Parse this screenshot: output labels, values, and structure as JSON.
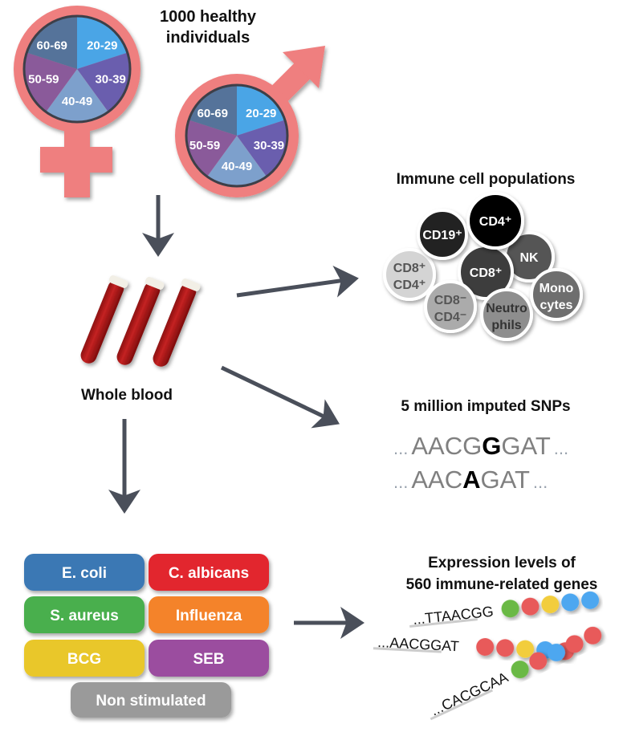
{
  "title": {
    "line1": "1000 healthy",
    "line2": "individuals"
  },
  "colors": {
    "symbol": "#ef7f7f",
    "arrow": "#4a4f5a",
    "blood": "#b51d1d"
  },
  "age_groups": [
    {
      "label": "20-29",
      "color": "#4aa5e6"
    },
    {
      "label": "30-39",
      "color": "#6a5eae"
    },
    {
      "label": "40-49",
      "color": "#7da0cc"
    },
    {
      "label": "50-59",
      "color": "#8a5a9a"
    },
    {
      "label": "60-69",
      "color": "#55739a"
    }
  ],
  "symbols": {
    "female": "female-symbol",
    "male": "male-symbol"
  },
  "blood": {
    "label": "Whole blood"
  },
  "immune": {
    "title": "Immune cell populations",
    "cells": [
      {
        "line1": "CD8⁺",
        "line2": "CD4⁺",
        "fill": "#d4d4d4",
        "text": "#555555"
      },
      {
        "line1": "CD19⁺",
        "line2": "",
        "fill": "#222222",
        "text": "#ffffff"
      },
      {
        "line1": "NK",
        "line2": "",
        "fill": "#555555",
        "text": "#ffffff"
      },
      {
        "line1": "CD8⁺",
        "line2": "",
        "fill": "#3c3c3c",
        "text": "#ffffff"
      },
      {
        "line1": "CD4⁺",
        "line2": "",
        "fill": "#000000",
        "text": "#ffffff"
      },
      {
        "line1": "CD8⁻",
        "line2": "CD4⁻",
        "fill": "#ababab",
        "text": "#555555"
      },
      {
        "line1": "Neutro",
        "line2": "phils",
        "fill": "#8e8e8e",
        "text": "#333333"
      },
      {
        "line1": "Mono",
        "line2": "cytes",
        "fill": "#6e6e6e",
        "text": "#ffffff"
      }
    ]
  },
  "snps": {
    "title": "5 million imputed SNPs",
    "seq1": {
      "pre": "AACG",
      "snp": "G",
      "post": "GAT"
    },
    "seq2": {
      "pre": "AAC",
      "snp": "A",
      "post": "GAT"
    },
    "dots": "..."
  },
  "stimuli": [
    {
      "label": "E. coli",
      "color": "#3a78b4"
    },
    {
      "label": "C. albicans",
      "color": "#e2272e"
    },
    {
      "label": "S. aureus",
      "color": "#4aaf4e"
    },
    {
      "label": "Influenza",
      "color": "#f4832a"
    },
    {
      "label": "BCG",
      "color": "#e9c72a"
    },
    {
      "label": "SEB",
      "color": "#9b4d9f"
    },
    {
      "label": "Non stimulated",
      "color": "#9a9a9a"
    }
  ],
  "expression": {
    "title1": "Expression levels of",
    "title2": "560 immune-related genes",
    "strands": [
      {
        "seq": "...TTAACGG",
        "beads": [
          "#6bb944",
          "#e85a5a",
          "#f2cd3c",
          "#4ea7f0",
          "#4ea7f0"
        ]
      },
      {
        "seq": "...AACGGAT",
        "beads": [
          "#e85a5a",
          "#e85a5a",
          "#f2cd3c",
          "#4ea7f0",
          "#e85a5a"
        ]
      },
      {
        "seq": "...CACGCAA",
        "beads": [
          "#6bb944",
          "#e85a5a",
          "#4ea7f0",
          "#e85a5a",
          "#e85a5a"
        ]
      }
    ]
  }
}
